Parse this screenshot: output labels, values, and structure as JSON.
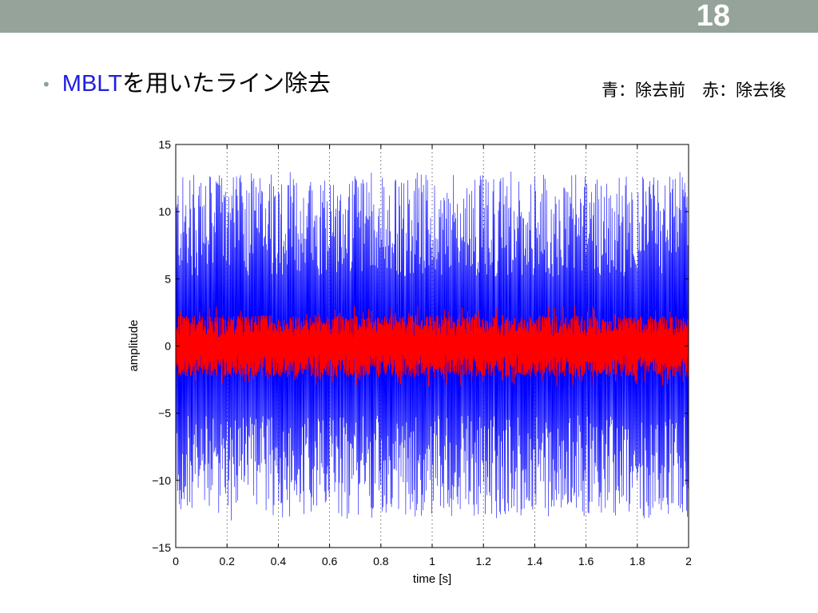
{
  "slide": {
    "number": "18",
    "bullet_accent": "MBLT",
    "bullet_rest": "を用いたライン除去",
    "legend_note": "青：除去前　赤：除去後"
  },
  "colors": {
    "header_bar": "#95a39a",
    "accent_text": "#1f1fdd",
    "series_before": "#0000ff",
    "series_after": "#ff0000"
  },
  "chart_data": {
    "type": "line",
    "title": "",
    "xlabel": "time [s]",
    "ylabel": "amplitude",
    "xlim": [
      0,
      2
    ],
    "ylim": [
      -15,
      15
    ],
    "xticks": [
      0,
      0.2,
      0.4,
      0.6,
      0.8,
      1,
      1.2,
      1.4,
      1.6,
      1.8,
      2
    ],
    "xtick_labels": [
      "0",
      "0.2",
      "0.4",
      "0.6",
      "0.8",
      "1",
      "1.2",
      "1.4",
      "1.6",
      "1.8",
      "2"
    ],
    "yticks": [
      15,
      10,
      5,
      0,
      -5,
      -10,
      -15
    ],
    "ytick_labels": [
      "15",
      "10",
      "5",
      "0",
      "−5",
      "−10",
      "−15"
    ],
    "grid": "dotted vertical",
    "series": [
      {
        "color": "blue",
        "description_range": [
          -13,
          13
        ],
        "typical_envelope": [
          -11.5,
          11.5
        ]
      },
      {
        "color": "red",
        "description_range": [
          -3,
          3
        ],
        "typical_envelope": [
          -2,
          2
        ]
      }
    ]
  }
}
